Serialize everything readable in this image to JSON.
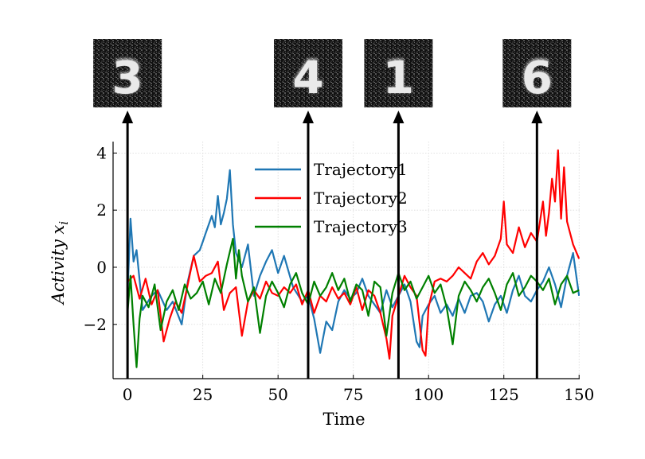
{
  "chart_data": {
    "type": "line",
    "xlabel": "Time",
    "ylabel": "Activity x_i",
    "ylabel_parts": {
      "main": "Activity x",
      "sub": "i"
    },
    "xlim": [
      -4.8,
      150.2
    ],
    "ylim": [
      -3.9,
      4.4
    ],
    "xticks": [
      0,
      25,
      50,
      75,
      100,
      125,
      150
    ],
    "yticks": [
      -2,
      0,
      2,
      4
    ],
    "xtick_labels": [
      "0",
      "25",
      "50",
      "75",
      "100",
      "125",
      "150"
    ],
    "ytick_labels": [
      "−2",
      "0",
      "2",
      "4"
    ],
    "grid": true,
    "legend_position": "top-center",
    "series": [
      {
        "name": "Trajectory1",
        "color": "#1f77b4",
        "points": [
          [
            0,
            -1.0
          ],
          [
            1,
            1.7
          ],
          [
            2,
            0.2
          ],
          [
            3,
            0.6
          ],
          [
            5,
            -1.5
          ],
          [
            8,
            -1.0
          ],
          [
            10,
            -0.8
          ],
          [
            13,
            -1.5
          ],
          [
            15,
            -1.2
          ],
          [
            18,
            -2.0
          ],
          [
            20,
            -0.5
          ],
          [
            22,
            0.4
          ],
          [
            24,
            0.6
          ],
          [
            25,
            0.9
          ],
          [
            26,
            1.2
          ],
          [
            28,
            1.8
          ],
          [
            29,
            1.4
          ],
          [
            30,
            2.5
          ],
          [
            31,
            1.5
          ],
          [
            32,
            1.9
          ],
          [
            33,
            2.4
          ],
          [
            34,
            3.4
          ],
          [
            35,
            1.5
          ],
          [
            36,
            0.5
          ],
          [
            38,
            0.0
          ],
          [
            40,
            0.8
          ],
          [
            42,
            -1.0
          ],
          [
            44,
            -0.3
          ],
          [
            46,
            0.2
          ],
          [
            48,
            0.6
          ],
          [
            50,
            -0.2
          ],
          [
            52,
            0.4
          ],
          [
            55,
            -0.7
          ],
          [
            58,
            -1.2
          ],
          [
            60,
            -1.0
          ],
          [
            62,
            -1.8
          ],
          [
            64,
            -3.0
          ],
          [
            66,
            -1.9
          ],
          [
            68,
            -2.2
          ],
          [
            70,
            -1.2
          ],
          [
            72,
            -0.8
          ],
          [
            74,
            -1.1
          ],
          [
            76,
            -0.9
          ],
          [
            78,
            -0.4
          ],
          [
            80,
            -1.0
          ],
          [
            82,
            -1.3
          ],
          [
            84,
            -1.6
          ],
          [
            86,
            -0.8
          ],
          [
            88,
            -1.4
          ],
          [
            90,
            -1.0
          ],
          [
            92,
            -0.6
          ],
          [
            94,
            -1.2
          ],
          [
            96,
            -2.6
          ],
          [
            97,
            -2.8
          ],
          [
            98,
            -1.7
          ],
          [
            100,
            -1.3
          ],
          [
            102,
            -1.0
          ],
          [
            104,
            -1.6
          ],
          [
            106,
            -1.3
          ],
          [
            108,
            -1.7
          ],
          [
            110,
            -1.1
          ],
          [
            112,
            -1.6
          ],
          [
            114,
            -1.0
          ],
          [
            116,
            -0.9
          ],
          [
            118,
            -1.2
          ],
          [
            120,
            -1.9
          ],
          [
            122,
            -1.3
          ],
          [
            124,
            -1.0
          ],
          [
            126,
            -1.6
          ],
          [
            128,
            -0.8
          ],
          [
            130,
            -0.3
          ],
          [
            132,
            -1.0
          ],
          [
            134,
            -1.2
          ],
          [
            136,
            -0.8
          ],
          [
            138,
            -0.5
          ],
          [
            140,
            0.0
          ],
          [
            142,
            -0.6
          ],
          [
            144,
            -1.4
          ],
          [
            146,
            -0.3
          ],
          [
            148,
            0.5
          ],
          [
            150,
            -1.0
          ]
        ]
      },
      {
        "name": "Trajectory2",
        "color": "#ff0000",
        "points": [
          [
            0,
            -0.5
          ],
          [
            2,
            -0.3
          ],
          [
            4,
            -1.1
          ],
          [
            6,
            -0.4
          ],
          [
            8,
            -1.3
          ],
          [
            10,
            -0.8
          ],
          [
            12,
            -2.6
          ],
          [
            14,
            -1.8
          ],
          [
            16,
            -1.2
          ],
          [
            18,
            -1.6
          ],
          [
            20,
            -0.6
          ],
          [
            22,
            0.4
          ],
          [
            24,
            -0.5
          ],
          [
            26,
            -0.3
          ],
          [
            28,
            -0.2
          ],
          [
            30,
            0.2
          ],
          [
            32,
            -1.5
          ],
          [
            34,
            -0.9
          ],
          [
            36,
            -0.7
          ],
          [
            38,
            -2.4
          ],
          [
            40,
            -1.2
          ],
          [
            42,
            -0.8
          ],
          [
            44,
            -1.1
          ],
          [
            46,
            -0.5
          ],
          [
            48,
            -0.9
          ],
          [
            50,
            -1.0
          ],
          [
            52,
            -0.7
          ],
          [
            54,
            -0.9
          ],
          [
            56,
            -0.6
          ],
          [
            58,
            -1.3
          ],
          [
            60,
            -0.8
          ],
          [
            62,
            -1.6
          ],
          [
            64,
            -1.0
          ],
          [
            66,
            -1.2
          ],
          [
            68,
            -0.7
          ],
          [
            70,
            -1.1
          ],
          [
            72,
            -0.9
          ],
          [
            74,
            -1.3
          ],
          [
            76,
            -0.7
          ],
          [
            78,
            -1.5
          ],
          [
            80,
            -0.8
          ],
          [
            82,
            -1.0
          ],
          [
            84,
            -1.6
          ],
          [
            86,
            -2.5
          ],
          [
            87,
            -3.2
          ],
          [
            88,
            -1.7
          ],
          [
            90,
            -1.0
          ],
          [
            92,
            -0.3
          ],
          [
            94,
            -0.7
          ],
          [
            96,
            -1.0
          ],
          [
            98,
            -2.9
          ],
          [
            99,
            -3.1
          ],
          [
            100,
            -1.4
          ],
          [
            102,
            -0.5
          ],
          [
            104,
            -0.4
          ],
          [
            106,
            -0.5
          ],
          [
            108,
            -0.3
          ],
          [
            110,
            0.0
          ],
          [
            112,
            -0.2
          ],
          [
            114,
            -0.4
          ],
          [
            116,
            0.2
          ],
          [
            118,
            0.5
          ],
          [
            120,
            0.1
          ],
          [
            122,
            0.4
          ],
          [
            124,
            1.0
          ],
          [
            125,
            2.3
          ],
          [
            126,
            0.8
          ],
          [
            128,
            0.5
          ],
          [
            130,
            1.4
          ],
          [
            132,
            0.7
          ],
          [
            134,
            1.2
          ],
          [
            136,
            0.9
          ],
          [
            138,
            2.3
          ],
          [
            139,
            1.1
          ],
          [
            140,
            1.9
          ],
          [
            141,
            3.1
          ],
          [
            142,
            2.3
          ],
          [
            143,
            4.1
          ],
          [
            144,
            1.7
          ],
          [
            145,
            3.5
          ],
          [
            146,
            1.6
          ],
          [
            148,
            0.8
          ],
          [
            150,
            0.3
          ]
        ]
      },
      {
        "name": "Trajectory3",
        "color": "#008000",
        "points": [
          [
            0,
            -1.6
          ],
          [
            1,
            -0.3
          ],
          [
            2,
            -2.0
          ],
          [
            3,
            -3.5
          ],
          [
            4,
            -1.8
          ],
          [
            5,
            -1.0
          ],
          [
            7,
            -1.4
          ],
          [
            9,
            -0.6
          ],
          [
            11,
            -2.2
          ],
          [
            13,
            -1.2
          ],
          [
            15,
            -0.8
          ],
          [
            17,
            -1.5
          ],
          [
            19,
            -0.6
          ],
          [
            21,
            -1.1
          ],
          [
            23,
            -0.9
          ],
          [
            25,
            -0.5
          ],
          [
            27,
            -1.3
          ],
          [
            29,
            -0.4
          ],
          [
            31,
            -0.9
          ],
          [
            33,
            0.1
          ],
          [
            35,
            1.0
          ],
          [
            36,
            -0.4
          ],
          [
            37,
            0.6
          ],
          [
            38,
            -0.3
          ],
          [
            40,
            -1.2
          ],
          [
            42,
            -0.7
          ],
          [
            44,
            -2.3
          ],
          [
            46,
            -1.0
          ],
          [
            48,
            -0.5
          ],
          [
            50,
            -0.9
          ],
          [
            52,
            -1.4
          ],
          [
            54,
            -0.6
          ],
          [
            56,
            -0.2
          ],
          [
            58,
            -0.9
          ],
          [
            60,
            -1.3
          ],
          [
            62,
            -0.5
          ],
          [
            64,
            -1.0
          ],
          [
            66,
            -0.7
          ],
          [
            68,
            -0.2
          ],
          [
            70,
            -0.8
          ],
          [
            72,
            -0.4
          ],
          [
            74,
            -1.2
          ],
          [
            76,
            -0.6
          ],
          [
            78,
            -0.8
          ],
          [
            80,
            -1.7
          ],
          [
            82,
            -0.5
          ],
          [
            84,
            -0.7
          ],
          [
            86,
            -2.4
          ],
          [
            88,
            -0.9
          ],
          [
            90,
            -0.2
          ],
          [
            92,
            -0.8
          ],
          [
            94,
            -0.5
          ],
          [
            96,
            -1.1
          ],
          [
            98,
            -0.7
          ],
          [
            100,
            -0.3
          ],
          [
            102,
            -0.9
          ],
          [
            104,
            -0.6
          ],
          [
            106,
            -1.4
          ],
          [
            108,
            -2.7
          ],
          [
            110,
            -1.0
          ],
          [
            112,
            -0.5
          ],
          [
            114,
            -0.8
          ],
          [
            116,
            -1.2
          ],
          [
            118,
            -0.7
          ],
          [
            120,
            -0.4
          ],
          [
            122,
            -0.9
          ],
          [
            124,
            -1.5
          ],
          [
            126,
            -0.6
          ],
          [
            128,
            -0.2
          ],
          [
            130,
            -1.0
          ],
          [
            132,
            -0.7
          ],
          [
            134,
            -0.3
          ],
          [
            136,
            -0.5
          ],
          [
            138,
            -0.8
          ],
          [
            140,
            -0.4
          ],
          [
            142,
            -1.3
          ],
          [
            144,
            -0.6
          ],
          [
            146,
            -0.3
          ],
          [
            148,
            -0.9
          ],
          [
            150,
            -0.8
          ]
        ]
      }
    ],
    "annotations": [
      {
        "type": "arrow",
        "x": 0,
        "digit": "3"
      },
      {
        "type": "arrow",
        "x": 60,
        "digit": "4"
      },
      {
        "type": "arrow",
        "x": 90,
        "digit": "1"
      },
      {
        "type": "arrow",
        "x": 136,
        "digit": "6"
      }
    ]
  }
}
